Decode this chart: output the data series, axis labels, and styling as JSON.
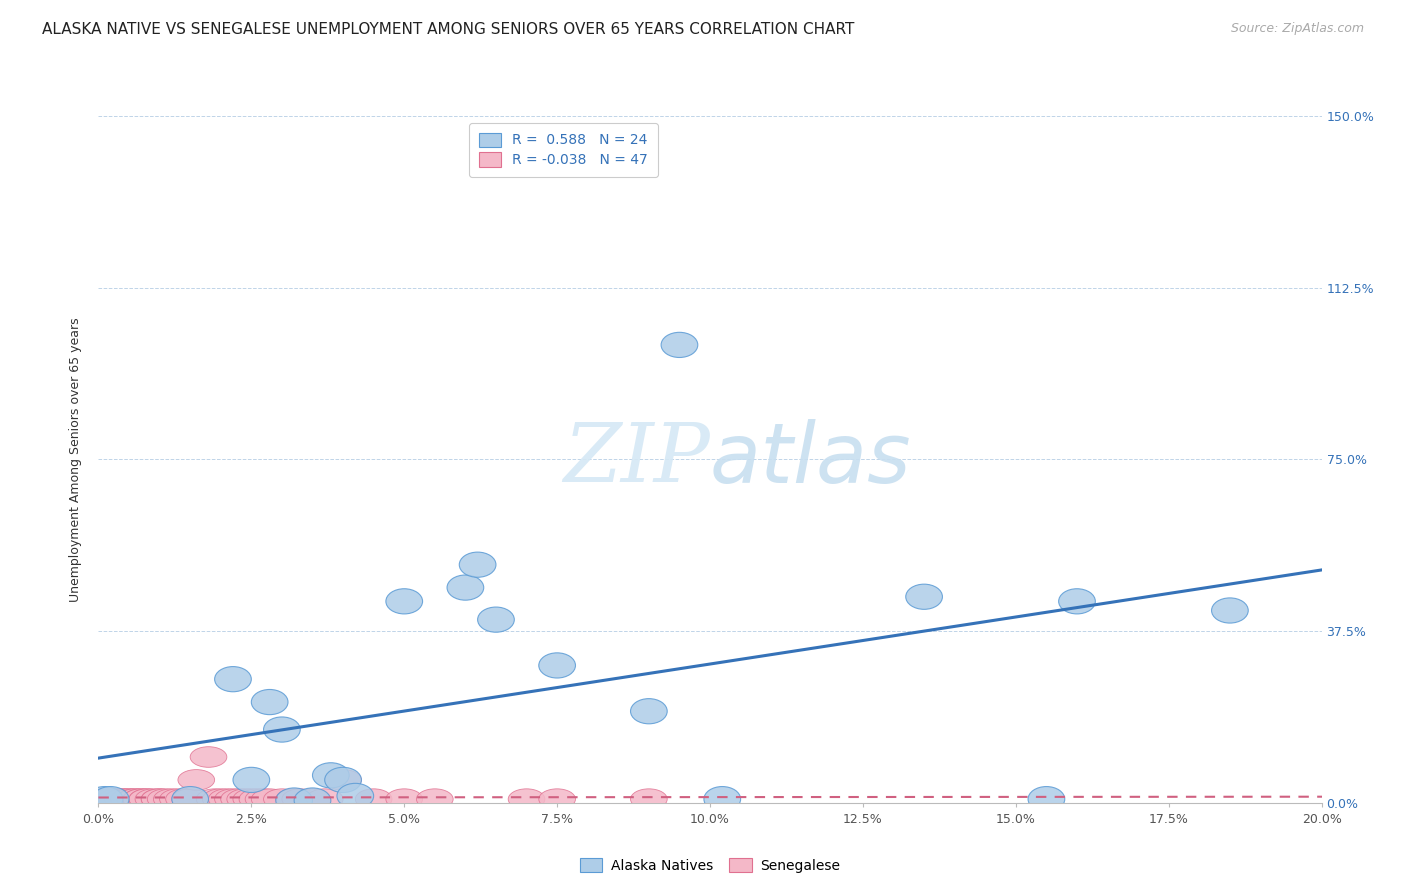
{
  "title": "ALASKA NATIVE VS SENEGALESE UNEMPLOYMENT AMONG SENIORS OVER 65 YEARS CORRELATION CHART",
  "source": "Source: ZipAtlas.com",
  "xlabel_ticks": [
    "0.0%",
    "2.5%",
    "5.0%",
    "7.5%",
    "10.0%",
    "12.5%",
    "15.0%",
    "17.5%",
    "20.0%"
  ],
  "xlabel_vals": [
    0.0,
    0.025,
    0.05,
    0.075,
    0.1,
    0.125,
    0.15,
    0.175,
    0.2
  ],
  "ylabel_vals": [
    0.0,
    0.375,
    0.75,
    1.125,
    1.5
  ],
  "ylabel_right_ticks": [
    "0.0%",
    "37.5%",
    "75.0%",
    "112.5%",
    "150.0%"
  ],
  "ylabel_label": "Unemployment Among Seniors over 65 years",
  "xlim": [
    0.0,
    0.2
  ],
  "ylim": [
    0.0,
    1.5
  ],
  "alaska_scatter_x": [
    0.001,
    0.002,
    0.015,
    0.022,
    0.025,
    0.028,
    0.03,
    0.032,
    0.035,
    0.038,
    0.04,
    0.042,
    0.05,
    0.06,
    0.062,
    0.065,
    0.075,
    0.09,
    0.095,
    0.102,
    0.135,
    0.155,
    0.16,
    0.185
  ],
  "alaska_scatter_y": [
    0.008,
    0.008,
    0.008,
    0.27,
    0.05,
    0.22,
    0.16,
    0.005,
    0.005,
    0.06,
    0.05,
    0.015,
    0.44,
    0.47,
    0.52,
    0.4,
    0.3,
    0.2,
    1.0,
    0.008,
    0.45,
    0.008,
    0.44,
    0.42
  ],
  "alaska_R": 0.588,
  "alaska_N": 24,
  "senegalese_scatter_x": [
    0.001,
    0.002,
    0.002,
    0.003,
    0.003,
    0.004,
    0.004,
    0.005,
    0.005,
    0.006,
    0.006,
    0.007,
    0.007,
    0.008,
    0.008,
    0.009,
    0.01,
    0.01,
    0.011,
    0.012,
    0.013,
    0.014,
    0.015,
    0.016,
    0.018,
    0.019,
    0.02,
    0.021,
    0.022,
    0.023,
    0.024,
    0.025,
    0.026,
    0.027,
    0.028,
    0.03,
    0.032,
    0.033,
    0.035,
    0.037,
    0.04,
    0.045,
    0.05,
    0.055,
    0.07,
    0.075,
    0.09
  ],
  "senegalese_scatter_y": [
    0.008,
    0.008,
    0.008,
    0.008,
    0.008,
    0.008,
    0.008,
    0.008,
    0.008,
    0.008,
    0.008,
    0.008,
    0.008,
    0.008,
    0.008,
    0.008,
    0.008,
    0.008,
    0.008,
    0.008,
    0.008,
    0.008,
    0.008,
    0.05,
    0.1,
    0.008,
    0.008,
    0.008,
    0.008,
    0.008,
    0.008,
    0.008,
    0.008,
    0.008,
    0.008,
    0.008,
    0.008,
    0.008,
    0.008,
    0.008,
    0.05,
    0.008,
    0.008,
    0.008,
    0.008,
    0.008,
    0.008
  ],
  "senegalese_R": -0.038,
  "senegalese_N": 47,
  "alaska_color": "#aecde8",
  "alaska_edge_color": "#5b9bd5",
  "senegalese_color": "#f4b8c8",
  "senegalese_edge_color": "#e07090",
  "alaska_line_color": "#3572b8",
  "senegalese_line_color": "#d06080",
  "background_color": "#ffffff",
  "grid_color": "#c0d4e8",
  "watermark_color": "#d5e8f5",
  "title_fontsize": 11,
  "source_fontsize": 9,
  "axis_label_fontsize": 9,
  "tick_fontsize": 9,
  "legend_fontsize": 10,
  "right_tick_color": "#3572b8"
}
